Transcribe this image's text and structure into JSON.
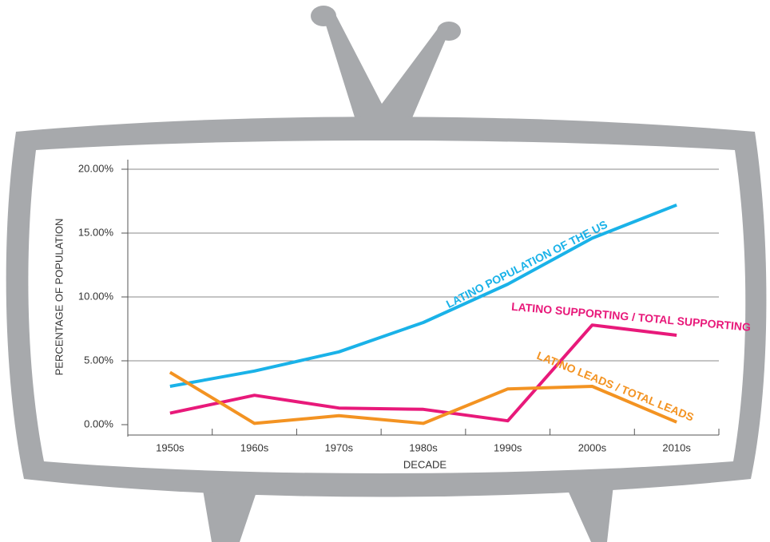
{
  "chart_data": {
    "type": "line",
    "y_label": "PERCENTAGE OF POPULATION",
    "x_label": "DECADE",
    "categories": [
      "1950s",
      "1960s",
      "1970s",
      "1980s",
      "1990s",
      "2000s",
      "2010s"
    ],
    "series": [
      {
        "name": "LATINO POPULATION OF THE US",
        "color": "#1ab2e8",
        "values": [
          3.0,
          4.2,
          5.7,
          8.0,
          11.0,
          14.6,
          17.2
        ]
      },
      {
        "name": "LATINO SUPPORTING / TOTAL SUPPORTING",
        "color": "#e8197a",
        "values": [
          0.9,
          2.3,
          1.3,
          1.2,
          0.3,
          7.8,
          7.0
        ]
      },
      {
        "name": "LATINO LEADS / TOTAL LEADS",
        "color": "#f39322",
        "values": [
          4.1,
          0.1,
          0.7,
          0.1,
          2.8,
          3.0,
          0.2
        ]
      }
    ],
    "ylim": [
      0,
      20
    ],
    "yticks": [
      {
        "value": 0,
        "label": "0.00%"
      },
      {
        "value": 5,
        "label": "5.00%"
      },
      {
        "value": 10,
        "label": "10.00%"
      },
      {
        "value": 15,
        "label": "15.00%"
      },
      {
        "value": 20,
        "label": "20.00%"
      }
    ],
    "grid": true
  }
}
